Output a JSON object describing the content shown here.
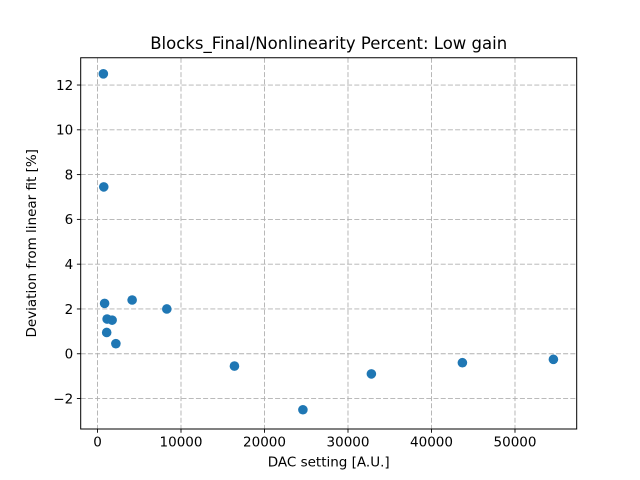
{
  "figure": {
    "background": "#ffffff",
    "text_color": "#000000"
  },
  "chart_data": {
    "type": "scatter",
    "title": "Blocks_Final/Nonlinearity Percent: Low gain",
    "xlabel": "DAC setting [A.U.]",
    "ylabel": "Deviation from linear fit [%]",
    "xlim": [
      -2012,
      57390
    ],
    "ylim": [
      -3.36,
      13.22
    ],
    "x_ticks": [
      0,
      10000,
      20000,
      30000,
      40000,
      50000
    ],
    "y_ticks": [
      -2,
      0,
      2,
      4,
      6,
      8,
      10,
      12
    ],
    "grid": true,
    "grid_style": "dashed",
    "grid_color": "#b0b0b0",
    "legend_position": "none",
    "marker": "circle",
    "marker_color": "#1f77b4",
    "points": [
      [
        700,
        12.5
      ],
      [
        750,
        7.45
      ],
      [
        850,
        2.25
      ],
      [
        1100,
        0.95
      ],
      [
        1150,
        1.55
      ],
      [
        1750,
        1.5
      ],
      [
        2200,
        0.45
      ],
      [
        4150,
        2.4
      ],
      [
        8300,
        2.0
      ],
      [
        16400,
        -0.55
      ],
      [
        24600,
        -2.5
      ],
      [
        32800,
        -0.9
      ],
      [
        43700,
        -0.4
      ],
      [
        54600,
        -0.25
      ]
    ]
  }
}
